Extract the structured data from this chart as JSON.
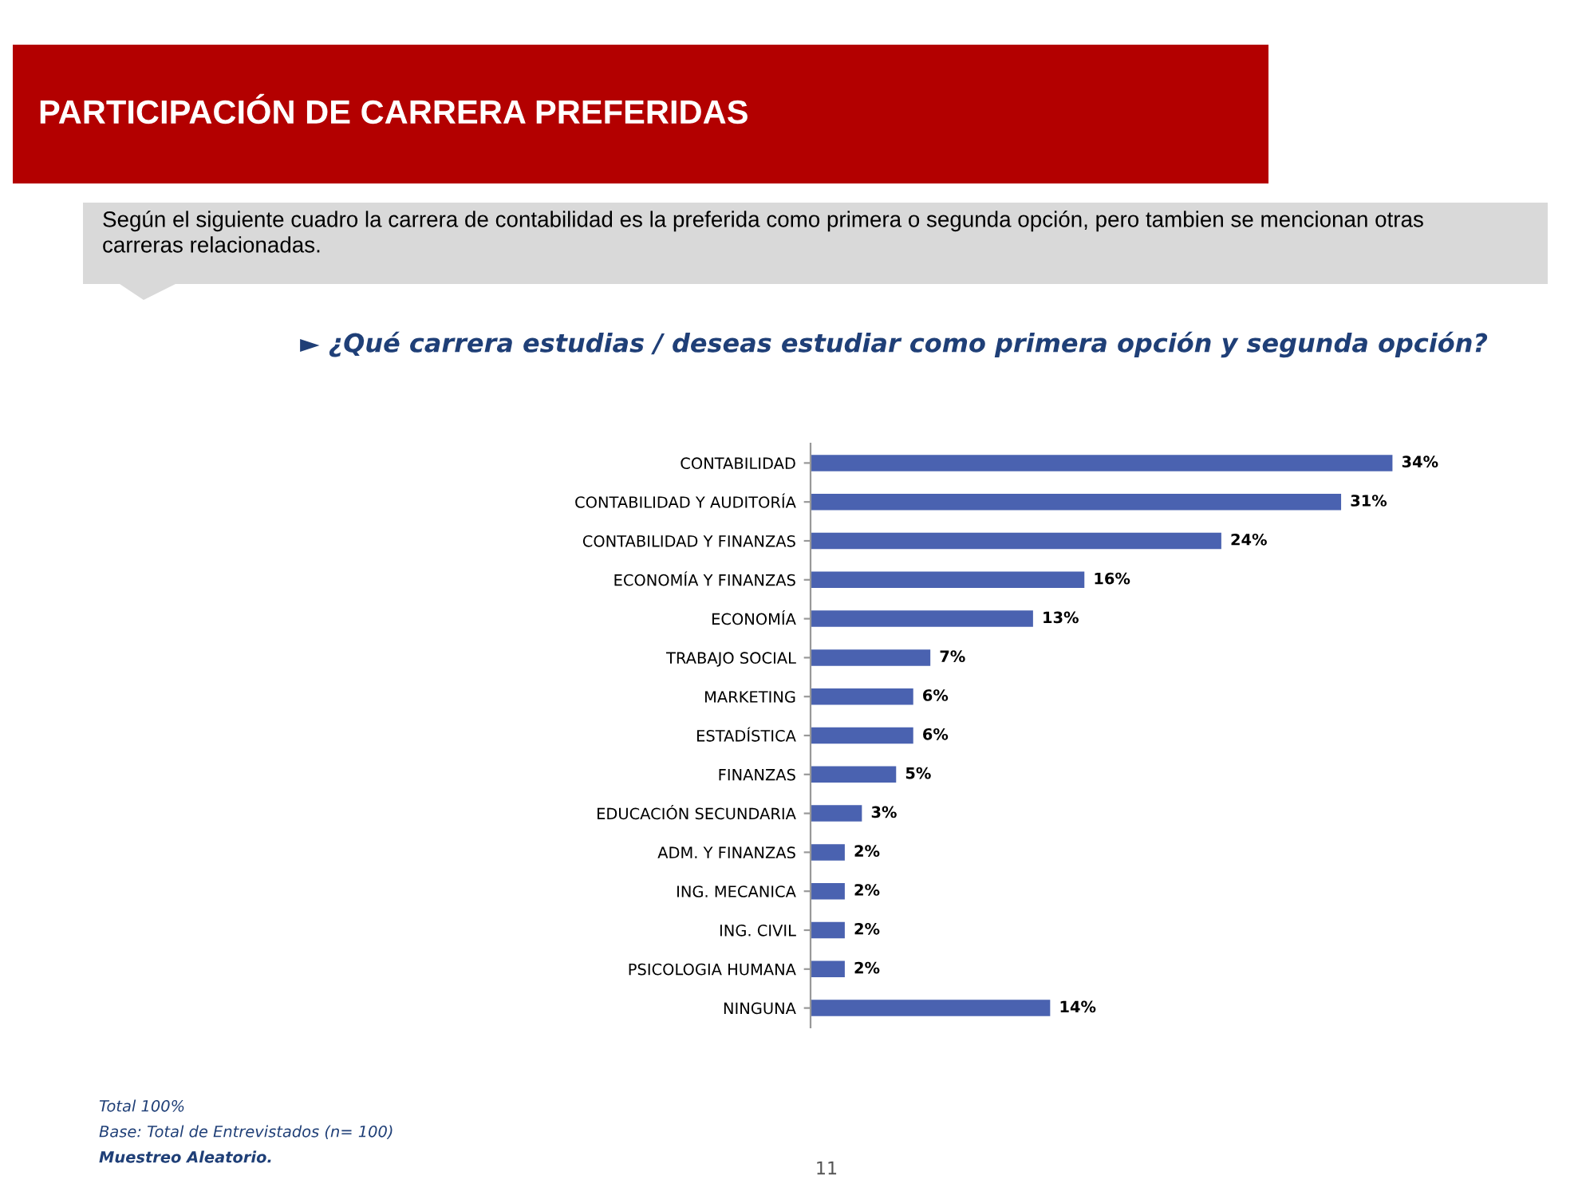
{
  "chart_data": {
    "type": "bar",
    "orientation": "horizontal",
    "title": "PARTICIPACIÓN DE CARRERA PREFERIDAS",
    "subtitle": "Según el siguiente cuadro la carrera de contabilidad es la preferida como primera o segunda opción, pero tambien se mencionan otras carreras relacionadas.",
    "annotations": [
      "► ¿Qué carrera estudias / deseas estudiar como primera opción y segunda opción?",
      "Total 100%",
      "Base: Total de Entrevistados (n= 100)",
      "Muestreo Aleatorio.",
      "11"
    ],
    "categories": [
      "CONTABILIDAD",
      "CONTABILIDAD Y AUDITORÍA",
      "CONTABILIDAD Y FINANZAS",
      "ECONOMÍA Y FINANZAS",
      "ECONOMÍA",
      "TRABAJO SOCIAL",
      "MARKETING",
      "ESTADÍSTICA",
      "FINANZAS",
      "EDUCACIÓN SECUNDARIA",
      "ADM. Y FINANZAS",
      "ING. MECANICA",
      "ING. CIVIL",
      "PSICOLOGIA HUMANA",
      "NINGUNA"
    ],
    "values": [
      34,
      31,
      24,
      16,
      13,
      7,
      6,
      6,
      5,
      3,
      2,
      2,
      2,
      2,
      14
    ],
    "value_labels": [
      "34%",
      "31%",
      "24%",
      "16%",
      "13%",
      "7%",
      "6%",
      "6%",
      "5%",
      "3%",
      "2%",
      "2%",
      "2%",
      "2%",
      "14%"
    ],
    "color": "#4a62b0",
    "grid": false,
    "legend": false
  }
}
